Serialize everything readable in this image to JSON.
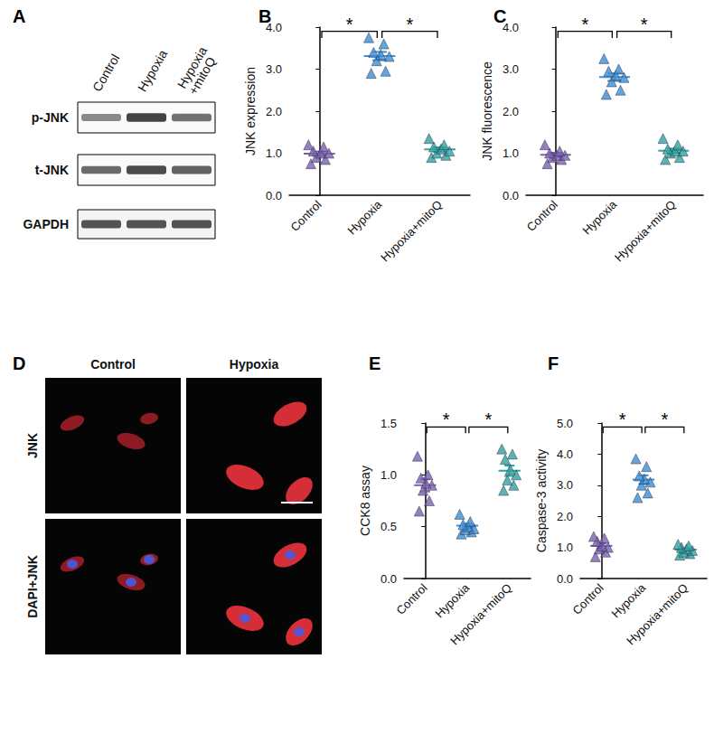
{
  "chart_data": [
    {
      "panel": "B",
      "type": "scatter",
      "marker": "triangle",
      "grid": false,
      "ylabel": "JNK expression",
      "categories": [
        "Control",
        "Hypoxia",
        "Hypoxia+mitoQ"
      ],
      "colors": [
        "#7a62b0",
        "#3b8fd6",
        "#2fa3a0"
      ],
      "values": [
        [
          0.75,
          0.85,
          0.9,
          1.0,
          1.0,
          1.05,
          1.15,
          1.2
        ],
        [
          2.9,
          2.95,
          3.2,
          3.3,
          3.35,
          3.4,
          3.6,
          3.75
        ],
        [
          0.9,
          0.95,
          1.0,
          1.05,
          1.1,
          1.15,
          1.2,
          1.35
        ]
      ],
      "mean": [
        0.99,
        3.31,
        1.09
      ],
      "error": [
        0.05,
        0.1,
        0.05
      ],
      "ylim": [
        0,
        4
      ],
      "yticks": [
        {
          "value": 0,
          "label": "0.0"
        },
        {
          "value": 1,
          "label": "1.0"
        },
        {
          "value": 2,
          "label": "2.0"
        },
        {
          "value": 3,
          "label": "3.0"
        },
        {
          "value": 4,
          "label": "4.0"
        }
      ],
      "annotations": [
        {
          "text": "*",
          "between": [
            "Control",
            "Hypoxia"
          ]
        },
        {
          "text": "*",
          "between": [
            "Hypoxia",
            "Hypoxia+mitoQ"
          ]
        }
      ]
    },
    {
      "panel": "C",
      "type": "scatter",
      "marker": "triangle",
      "grid": false,
      "ylabel": "JNK fluorescence",
      "categories": [
        "Control",
        "Hypoxia",
        "Hypoxia+mitoQ"
      ],
      "colors": [
        "#7a62b0",
        "#3b8fd6",
        "#2fa3a0"
      ],
      "values": [
        [
          0.75,
          0.85,
          0.9,
          0.95,
          0.95,
          1.0,
          1.05,
          1.2
        ],
        [
          2.4,
          2.5,
          2.7,
          2.8,
          2.85,
          2.95,
          3.0,
          3.25
        ],
        [
          0.85,
          0.9,
          1.0,
          1.05,
          1.05,
          1.1,
          1.2,
          1.35
        ]
      ],
      "mean": [
        0.96,
        2.81,
        1.06
      ],
      "error": [
        0.05,
        0.09,
        0.05
      ],
      "ylim": [
        0,
        4
      ],
      "yticks": [
        {
          "value": 0,
          "label": "0.0"
        },
        {
          "value": 1,
          "label": "1.0"
        },
        {
          "value": 2,
          "label": "2.0"
        },
        {
          "value": 3,
          "label": "3.0"
        },
        {
          "value": 4,
          "label": "4.0"
        }
      ],
      "annotations": [
        {
          "text": "*",
          "between": [
            "Control",
            "Hypoxia"
          ]
        },
        {
          "text": "*",
          "between": [
            "Hypoxia",
            "Hypoxia+mitoQ"
          ]
        }
      ]
    },
    {
      "panel": "E",
      "type": "scatter",
      "marker": "triangle",
      "grid": false,
      "ylabel": "CCK8 assay",
      "categories": [
        "Control",
        "Hypoxia",
        "Hypoxia+mitoQ"
      ],
      "colors": [
        "#7a62b0",
        "#3b8fd6",
        "#2fa3a0"
      ],
      "values": [
        [
          0.65,
          0.75,
          0.85,
          0.9,
          0.92,
          0.97,
          1.0,
          1.18
        ],
        [
          0.43,
          0.45,
          0.47,
          0.48,
          0.5,
          0.52,
          0.55,
          0.62
        ],
        [
          0.85,
          0.9,
          0.95,
          1.0,
          1.05,
          1.15,
          1.2,
          1.25
        ]
      ],
      "mean": [
        0.9,
        0.51,
        1.04
      ],
      "error": [
        0.06,
        0.02,
        0.05
      ],
      "ylim": [
        0,
        1.5
      ],
      "yticks": [
        {
          "value": 0,
          "label": "0.0"
        },
        0.5,
        {
          "value": 1,
          "label": "1.0"
        },
        1.5
      ],
      "annotations": [
        {
          "text": "*",
          "between": [
            "Control",
            "Hypoxia"
          ]
        },
        {
          "text": "*",
          "between": [
            "Hypoxia",
            "Hypoxia+mitoQ"
          ]
        }
      ]
    },
    {
      "panel": "F",
      "type": "scatter",
      "marker": "triangle",
      "grid": false,
      "ylabel": "Caspase-3 activity",
      "categories": [
        "Control",
        "Hypoxia",
        "Hypoxia+mitoQ"
      ],
      "colors": [
        "#7a62b0",
        "#3b8fd6",
        "#2fa3a0"
      ],
      "values": [
        [
          0.7,
          0.85,
          0.95,
          1.0,
          1.05,
          1.2,
          1.3,
          1.35
        ],
        [
          2.6,
          2.75,
          3.0,
          3.1,
          3.2,
          3.3,
          3.6,
          3.85
        ],
        [
          0.75,
          0.8,
          0.85,
          0.9,
          0.95,
          1.0,
          1.05,
          1.1
        ]
      ],
      "mean": [
        1.05,
        3.18,
        0.93
      ],
      "error": [
        0.08,
        0.14,
        0.04
      ],
      "ylim": [
        0,
        5
      ],
      "yticks": [
        {
          "value": 0,
          "label": "0.0"
        },
        {
          "value": 1,
          "label": "1.0"
        },
        {
          "value": 2,
          "label": "2.0"
        },
        {
          "value": 3,
          "label": "3.0"
        },
        {
          "value": 4,
          "label": "4.0"
        },
        {
          "value": 5,
          "label": "5.0"
        }
      ],
      "annotations": [
        {
          "text": "*",
          "between": [
            "Control",
            "Hypoxia"
          ]
        },
        {
          "text": "*",
          "between": [
            "Hypoxia",
            "Hypoxia+mitoQ"
          ]
        }
      ]
    }
  ],
  "blot": {
    "panel": "A",
    "lanes": [
      "Control",
      "Hypoxia",
      "Hypoxia\n+mitoQ"
    ],
    "rows": [
      "p-JNK",
      "t-JNK",
      "GAPDH"
    ]
  },
  "micrograph": {
    "panel": "D",
    "columns": [
      "Control",
      "Hypoxia"
    ],
    "rows": [
      "JNK",
      "DAPI+JNK"
    ]
  }
}
